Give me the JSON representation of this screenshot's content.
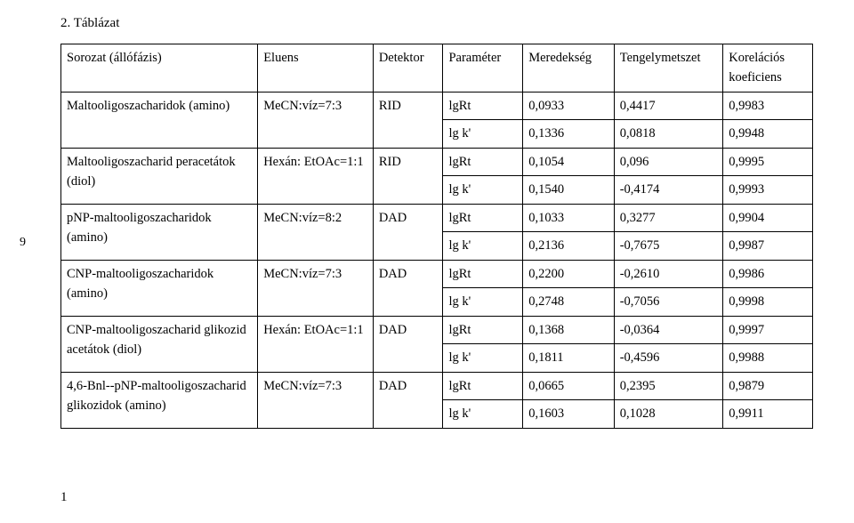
{
  "title": "2. Táblázat",
  "side_page_number": "9",
  "footer_marker": "1",
  "table": {
    "header": {
      "series": "Sorozat (állófázis)",
      "eluent": "Eluens",
      "detector": "Detektor",
      "param": "Paraméter",
      "slope": "Meredekség",
      "intercept": "Tengelymetszet",
      "corr1": "Korelációs",
      "corr2": "koeficiens"
    },
    "rows": [
      {
        "series": "Maltooligoszacharidok (amino)",
        "eluent": "MeCN:víz=7:3",
        "detector": "RID",
        "p1": "lgRt",
        "m1": "0,0933",
        "t1": "0,4417",
        "k1": "0,9983",
        "p2": "lg k'",
        "m2": "0,1336",
        "t2": "0,0818",
        "k2": "0,9948"
      },
      {
        "series1": "Maltooligoszacharid peracetátok",
        "series2": "(diol)",
        "eluent": "Hexán: EtOAc=1:1",
        "detector": "RID",
        "p1": "lgRt",
        "m1": "0,1054",
        "t1": "0,096",
        "k1": "0,9995",
        "p2": "lg k'",
        "m2": "0,1540",
        "t2": "-0,4174",
        "k2": "0,9993"
      },
      {
        "series": "pNP-maltooligoszacharidok (amino)",
        "eluent": "MeCN:víz=8:2",
        "detector": "DAD",
        "p1": "lgRt",
        "m1": "0,1033",
        "t1": "0,3277",
        "k1": "0,9904",
        "p2": "lg k'",
        "m2": "0,2136",
        "t2": "-0,7675",
        "k2": "0,9987"
      },
      {
        "series1": "CNP-maltooligoszacharidok",
        "series2": "(amino)",
        "eluent": "MeCN:víz=7:3",
        "detector": "DAD",
        "p1": "lgRt",
        "m1": "0,2200",
        "t1": "-0,2610",
        "k1": "0,9986",
        "p2": "lg k'",
        "m2": "0,2748",
        "t2": "-0,7056",
        "k2": "0,9998"
      },
      {
        "series1": "CNP-maltooligoszacharid glikozid",
        "series2": "acetátok (diol)",
        "eluent": "Hexán: EtOAc=1:1",
        "detector": "DAD",
        "p1": "lgRt",
        "m1": "0,1368",
        "t1": "-0,0364",
        "k1": "0,9997",
        "p2": "lg k'",
        "m2": "0,1811",
        "t2": "-0,4596",
        "k2": "0,9988"
      },
      {
        "series1": "4,6-Bnl--pNP-maltooligoszacharid",
        "series2": "glikozidok (amino)",
        "eluent": "MeCN:víz=7:3",
        "detector": "DAD",
        "p1": "lgRt",
        "m1": "0,0665",
        "t1": "0,2395",
        "k1": "0,9879",
        "p2": "lg k'",
        "m2": "0,1603",
        "t2": "0,1028",
        "k2": "0,9911"
      }
    ]
  }
}
